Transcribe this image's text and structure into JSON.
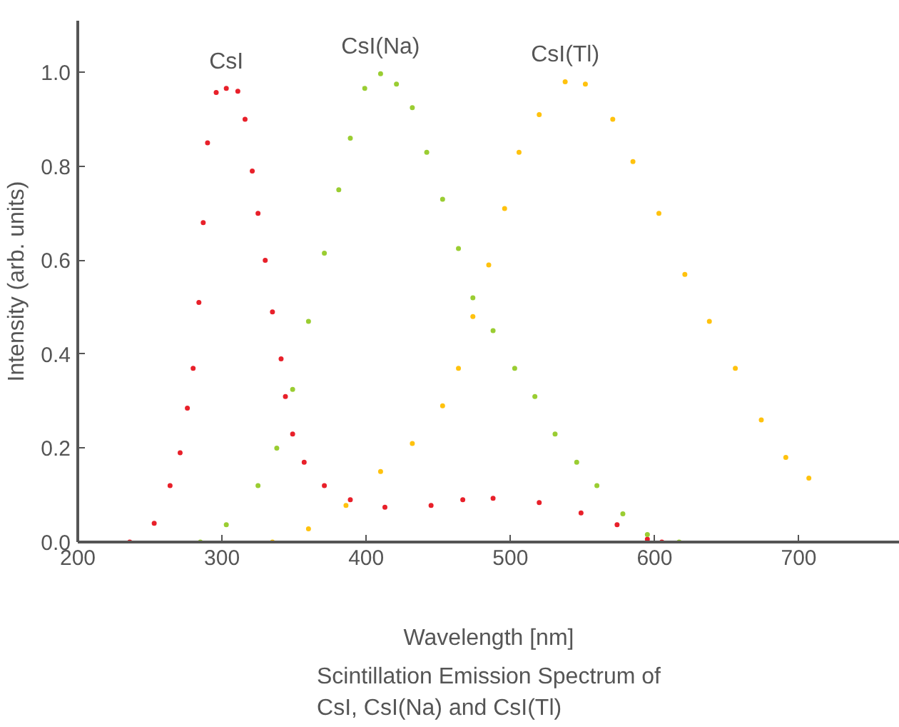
{
  "chart_data": {
    "type": "scatter",
    "xlabel": "Wavelength [nm]",
    "ylabel": "Intensity (arb. units)",
    "annotations": [
      "Scintillation Emission Spectrum of\nCsI, CsI(Na) and CsI(Tl)"
    ],
    "xlim": [
      200,
      770
    ],
    "xticks": [
      200,
      300,
      400,
      500,
      600,
      700
    ],
    "ylim": [
      0,
      1.11
    ],
    "yticks": [
      {
        "value": 0,
        "label": "0.0"
      },
      0.2,
      0.4,
      0.6,
      0.8,
      {
        "value": 1,
        "label": "1.0"
      }
    ],
    "grid": false,
    "marker": "circle",
    "series": [
      {
        "name": "CsI",
        "color": "#e8202a",
        "x": [
          236,
          253,
          264,
          271,
          276,
          280,
          284,
          287,
          290,
          296,
          303,
          311,
          316,
          321,
          325,
          330,
          335,
          341,
          344,
          349,
          357,
          371,
          389,
          413,
          445,
          467,
          488,
          520,
          549,
          574,
          595,
          605
        ],
        "values": [
          0,
          0.04,
          0.12,
          0.19,
          0.285,
          0.37,
          0.51,
          0.68,
          0.85,
          0.957,
          0.966,
          0.96,
          0.9,
          0.79,
          0.7,
          0.6,
          0.49,
          0.39,
          0.31,
          0.23,
          0.17,
          0.12,
          0.09,
          0.074,
          0.078,
          0.09,
          0.093,
          0.084,
          0.062,
          0.037,
          0.006,
          0
        ]
      },
      {
        "name": "CsI(Na)",
        "color": "#9acd32",
        "x": [
          285,
          303,
          325,
          338,
          349,
          360,
          371,
          381,
          389,
          399,
          410,
          421,
          432,
          442,
          453,
          464,
          474,
          488,
          503,
          517,
          531,
          546,
          560,
          578,
          595,
          617
        ],
        "values": [
          0,
          0.037,
          0.12,
          0.2,
          0.325,
          0.47,
          0.615,
          0.75,
          0.86,
          0.966,
          0.997,
          0.975,
          0.925,
          0.83,
          0.73,
          0.625,
          0.52,
          0.45,
          0.37,
          0.31,
          0.23,
          0.17,
          0.12,
          0.06,
          0.016,
          0
        ]
      },
      {
        "name": "CsI(Tl)",
        "color": "#ffc20e",
        "x": [
          335,
          360,
          386,
          410,
          432,
          453,
          464,
          474,
          485,
          496,
          506,
          520,
          538,
          552,
          571,
          585,
          603,
          621,
          638,
          656,
          674,
          691,
          707
        ],
        "values": [
          0,
          0.028,
          0.078,
          0.15,
          0.21,
          0.29,
          0.37,
          0.48,
          0.59,
          0.71,
          0.83,
          0.91,
          0.98,
          0.975,
          0.9,
          0.81,
          0.7,
          0.57,
          0.47,
          0.37,
          0.26,
          0.18,
          0.136
        ]
      }
    ]
  }
}
